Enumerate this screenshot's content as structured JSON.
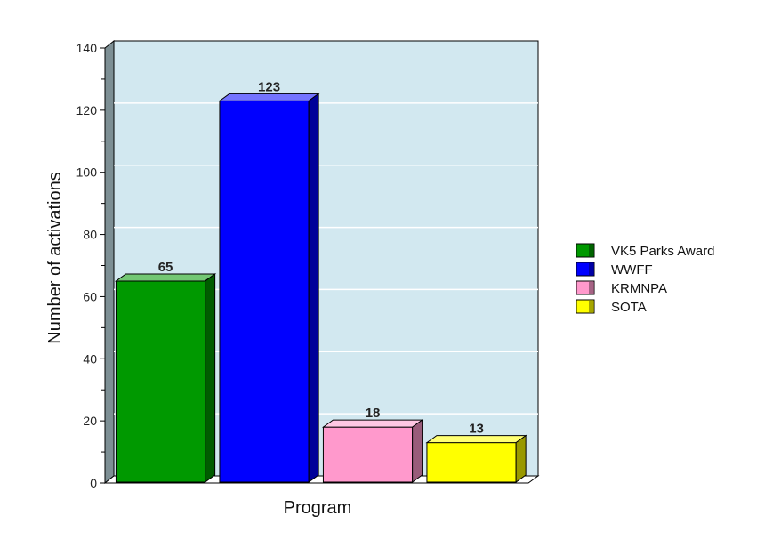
{
  "chart_data": {
    "type": "bar",
    "categories": [
      "VK5 Parks Award",
      "WWFF",
      "KRMNPA",
      "SOTA"
    ],
    "values": [
      65,
      123,
      18,
      13
    ],
    "data_labels": [
      "65",
      "123",
      "18",
      "13"
    ],
    "colors": [
      "#009900",
      "#0000ff",
      "#ff99cc",
      "#ffff00"
    ],
    "title": "",
    "xlabel": "Program",
    "ylabel": "Number of activations",
    "ylim": [
      0,
      140
    ],
    "yticks": [
      0,
      20,
      40,
      60,
      80,
      100,
      120,
      140
    ],
    "ytick_labels": [
      "0",
      "20",
      "40",
      "60",
      "80",
      "100",
      "120",
      "140"
    ],
    "grid": true,
    "plot_background": "#d2e8f0",
    "legend": {
      "placement": "right",
      "entries": [
        "VK5 Parks Award",
        "WWFF",
        "KRMNPA",
        "SOTA"
      ]
    }
  }
}
